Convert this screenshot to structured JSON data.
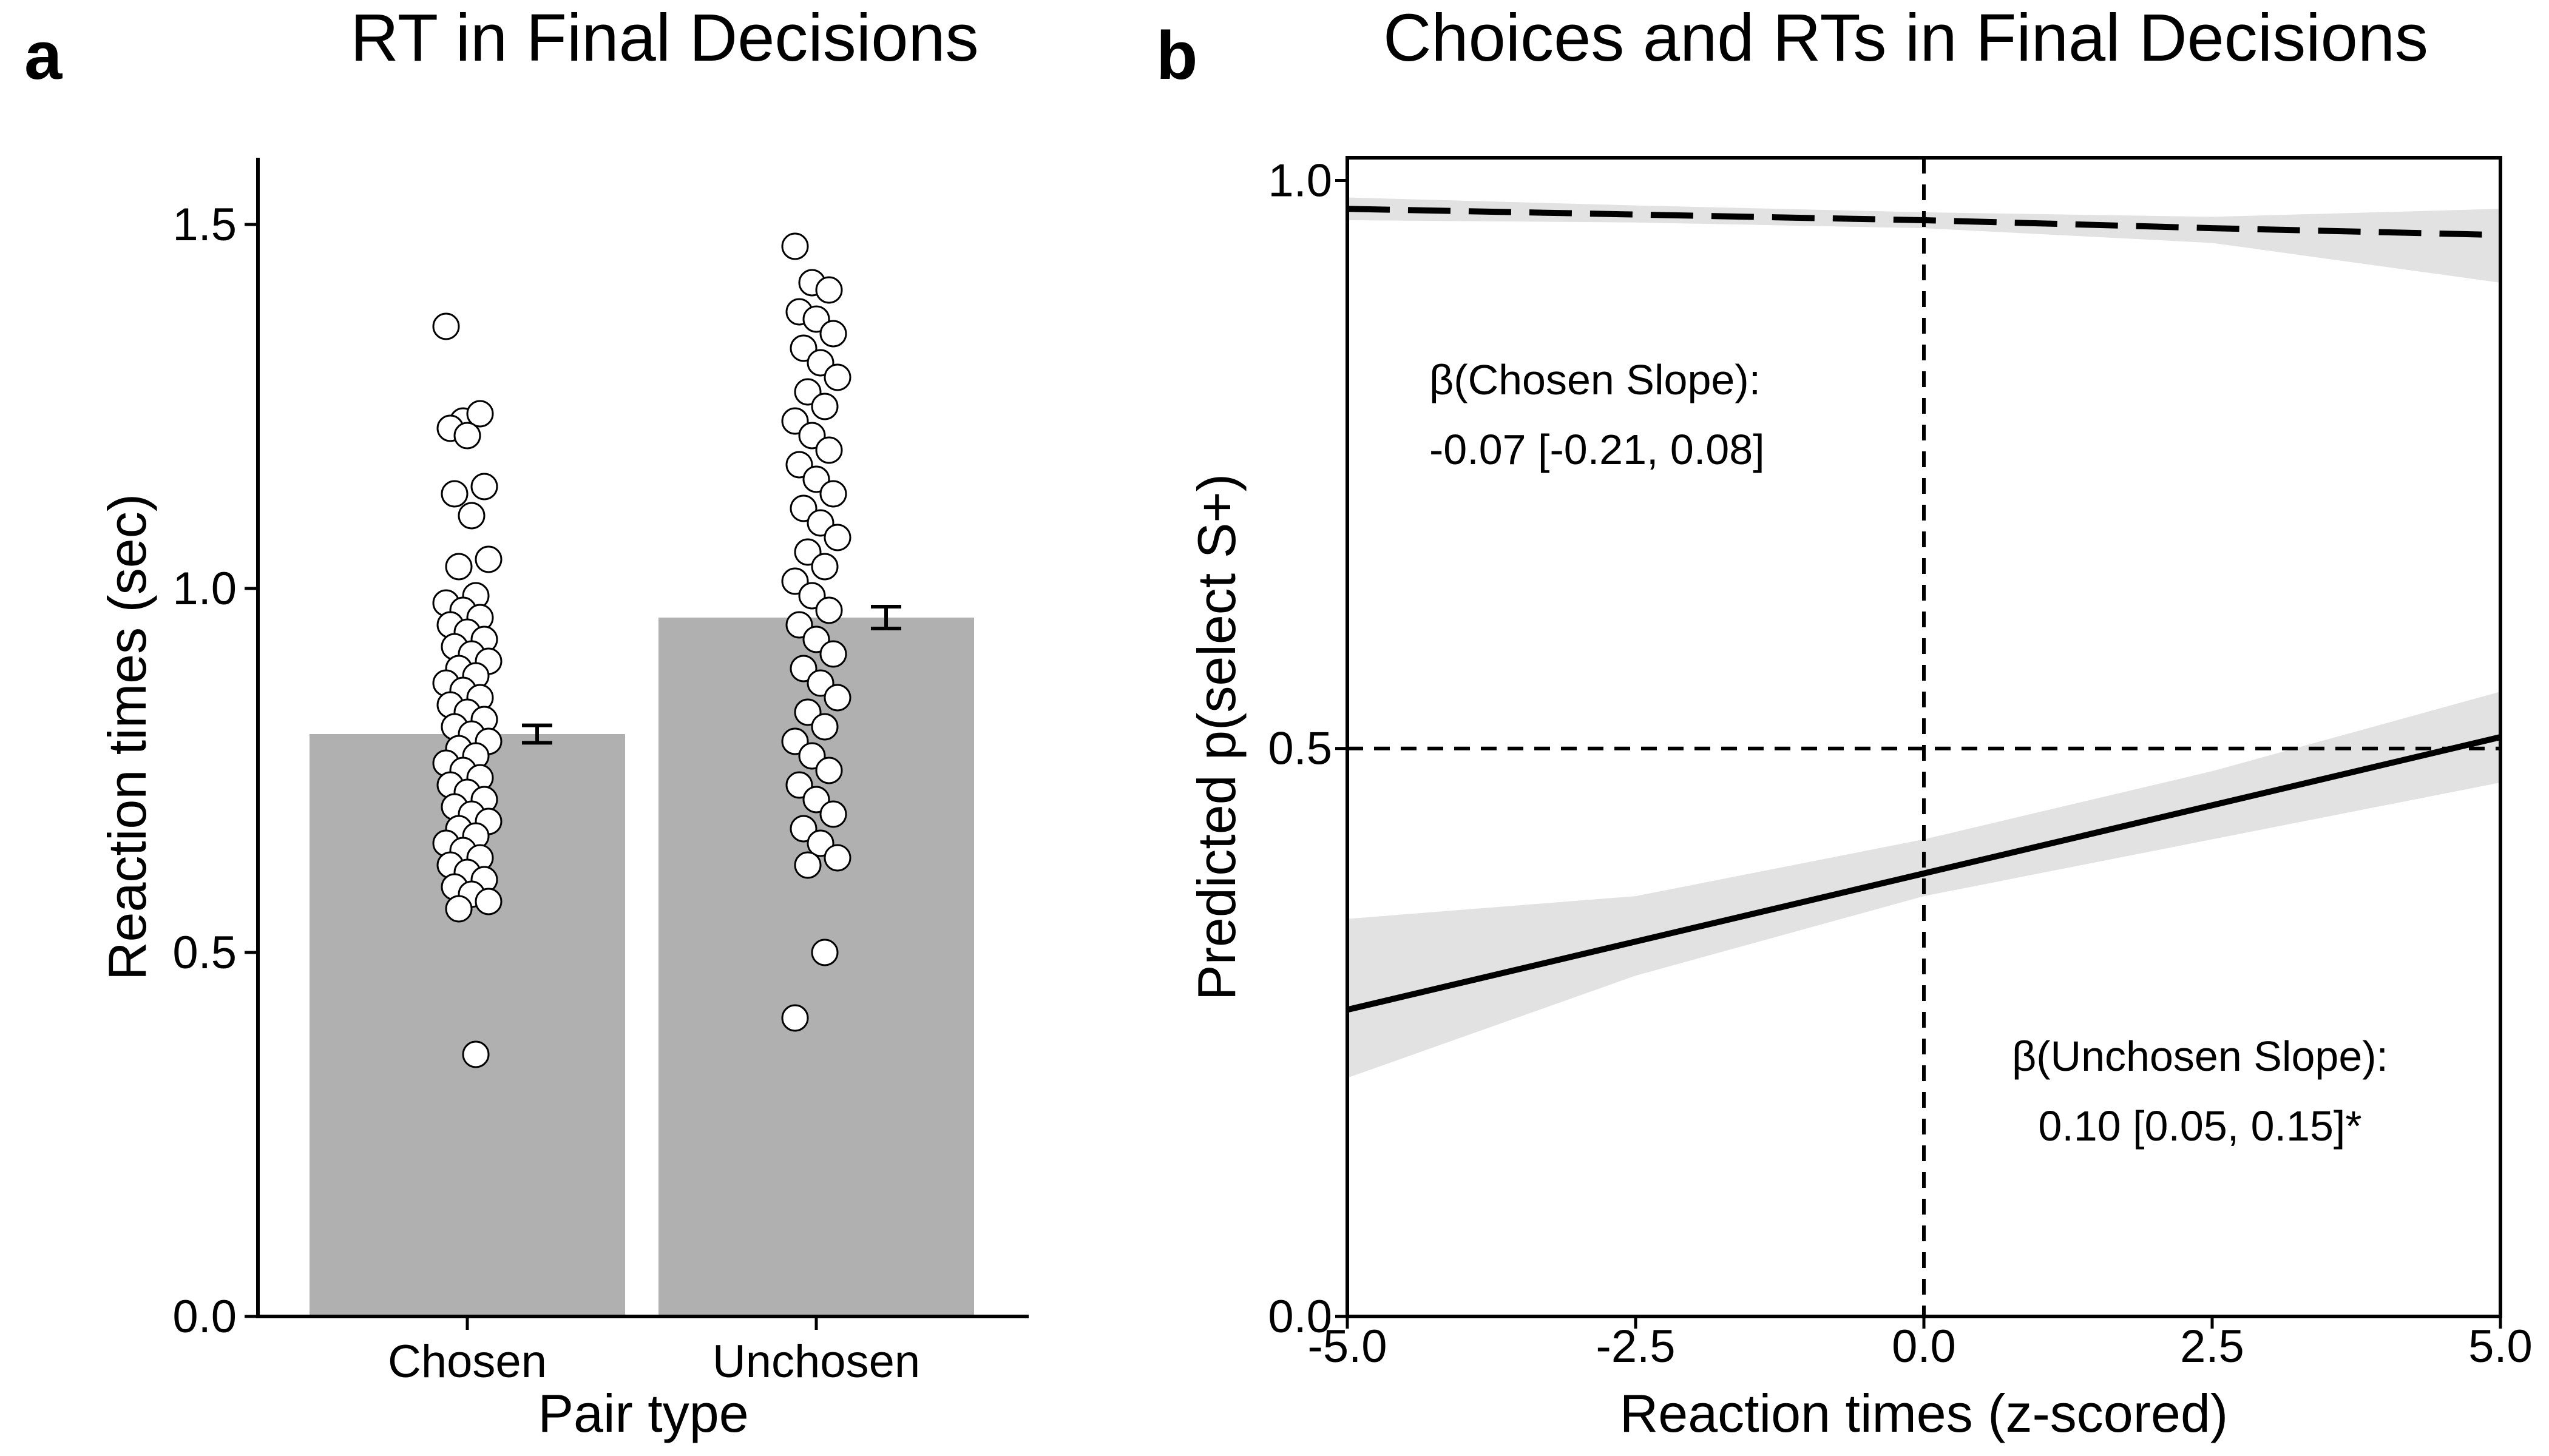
{
  "chart_data": [
    {
      "panel": "a",
      "type": "bar",
      "title": "RT in Final Decisions",
      "xlabel": "Pair type",
      "ylabel": "Reaction times (sec)",
      "categories": [
        "Chosen",
        "Unchosen"
      ],
      "values": [
        0.8,
        0.96
      ],
      "error": [
        0.012,
        0.015
      ],
      "ylim": [
        0,
        1.55
      ],
      "yticks": [
        0.0,
        0.5,
        1.0,
        1.5
      ],
      "ytick_labels": [
        "0.0",
        "0.5",
        "1.0",
        "1.5"
      ],
      "grid": false,
      "bar_color": "#b0b0b0",
      "points": {
        "Chosen": [
          1.36,
          1.23,
          1.24,
          1.22,
          1.21,
          1.14,
          1.13,
          1.1,
          1.04,
          1.03,
          0.99,
          0.98,
          0.97,
          0.96,
          0.95,
          0.94,
          0.93,
          0.92,
          0.91,
          0.9,
          0.89,
          0.88,
          0.87,
          0.86,
          0.85,
          0.84,
          0.83,
          0.82,
          0.81,
          0.8,
          0.79,
          0.78,
          0.77,
          0.76,
          0.75,
          0.74,
          0.73,
          0.72,
          0.71,
          0.7,
          0.69,
          0.68,
          0.67,
          0.66,
          0.65,
          0.64,
          0.63,
          0.62,
          0.61,
          0.6,
          0.59,
          0.58,
          0.57,
          0.56,
          0.36
        ],
        "Unchosen": [
          1.47,
          1.42,
          1.41,
          1.38,
          1.37,
          1.35,
          1.33,
          1.31,
          1.29,
          1.27,
          1.25,
          1.23,
          1.21,
          1.19,
          1.17,
          1.15,
          1.13,
          1.11,
          1.09,
          1.07,
          1.05,
          1.03,
          1.01,
          0.99,
          0.97,
          0.95,
          0.93,
          0.91,
          0.89,
          0.87,
          0.85,
          0.83,
          0.81,
          0.79,
          0.77,
          0.75,
          0.73,
          0.71,
          0.69,
          0.67,
          0.65,
          0.63,
          0.62,
          0.5,
          0.41
        ]
      }
    },
    {
      "panel": "b",
      "type": "line",
      "title": "Choices and RTs in Final Decisions",
      "xlabel": "Reaction times (z-scored)",
      "ylabel": "Predicted p(select S+)",
      "xlim": [
        -5.0,
        5.0
      ],
      "ylim": [
        0.0,
        1.02
      ],
      "xticks": [
        -5.0,
        -2.5,
        0.0,
        2.5,
        5.0
      ],
      "xtick_labels": [
        "-5.0",
        "-2.5",
        "0.0",
        "2.5",
        "5.0"
      ],
      "yticks": [
        0.0,
        0.5,
        1.0
      ],
      "ytick_labels": [
        "0.0",
        "0.5",
        "1.0"
      ],
      "grid": false,
      "reference_lines": {
        "x": 0.0,
        "y": 0.5
      },
      "series": [
        {
          "style": "dashed",
          "x": [
            -5.0,
            -2.5,
            0.0,
            2.5,
            5.0
          ],
          "y": [
            0.975,
            0.97,
            0.965,
            0.958,
            0.952
          ],
          "ci_low": [
            0.965,
            0.963,
            0.958,
            0.945,
            0.91
          ],
          "ci_high": [
            0.985,
            0.978,
            0.972,
            0.968,
            0.975
          ]
        },
        {
          "style": "solid",
          "x": [
            -5.0,
            -2.5,
            0.0,
            2.5,
            5.0
          ],
          "y": [
            0.27,
            0.33,
            0.39,
            0.45,
            0.51
          ],
          "ci_low": [
            0.21,
            0.3,
            0.37,
            0.42,
            0.47
          ],
          "ci_high": [
            0.35,
            0.37,
            0.42,
            0.48,
            0.55
          ]
        }
      ],
      "annotations": [
        {
          "line1": "β(Chosen Slope):",
          "line2": "-0.07 [-0.21, 0.08]"
        },
        {
          "line1": "β(Unchosen Slope):",
          "line2": "0.10 [0.05, 0.15]*"
        }
      ]
    }
  ]
}
